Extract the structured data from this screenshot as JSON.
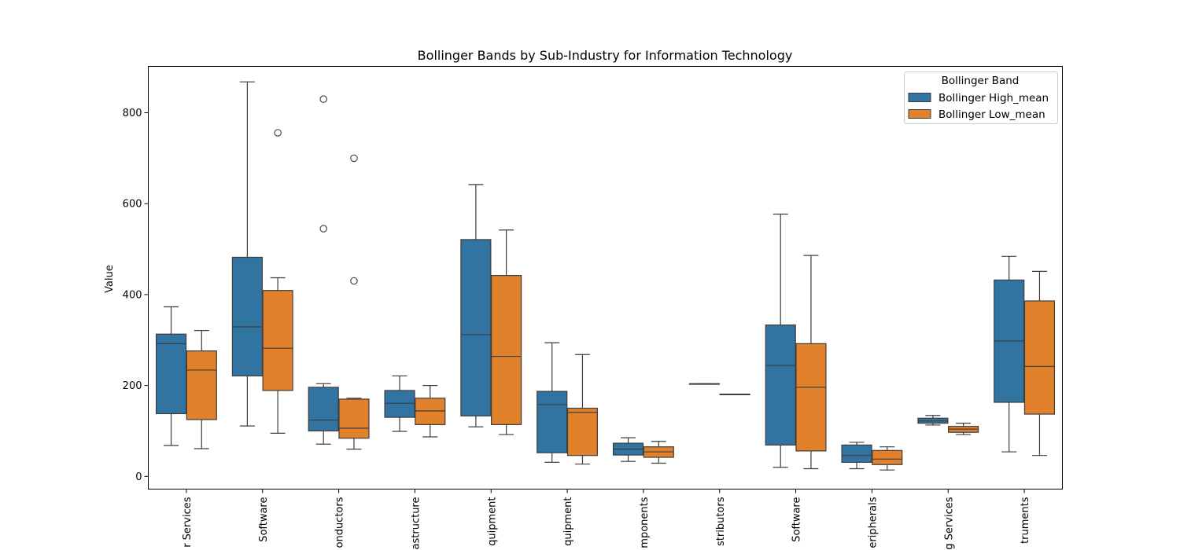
{
  "chart_data": {
    "type": "box",
    "title": "Bollinger Bands by Sub-Industry for Information Technology",
    "xlabel": "",
    "ylabel": "Value",
    "ylim": [
      -28,
      902
    ],
    "yticks": [
      0,
      200,
      400,
      600,
      800
    ],
    "grid": false,
    "legend": {
      "title": "Bollinger Band",
      "placement": "top-right"
    },
    "categories": [
      "r Services",
      "Software",
      "onductors",
      "astructure",
      "quipment",
      "quipment",
      "mponents",
      "stributors",
      "Software",
      "eripherals",
      "g Services",
      "truments"
    ],
    "series": [
      {
        "name": "Bollinger High_mean",
        "color": "#3274a1",
        "boxes": [
          {
            "whisker_low": 68,
            "q1": 138,
            "median": 292,
            "q3": 313,
            "whisker_high": 373,
            "outliers": []
          },
          {
            "whisker_low": 111,
            "q1": 221,
            "median": 329,
            "q3": 482,
            "whisker_high": 868,
            "outliers": []
          },
          {
            "whisker_low": 71,
            "q1": 100,
            "median": 124,
            "q3": 196,
            "whisker_high": 204,
            "outliers": [
              545,
              830
            ]
          },
          {
            "whisker_low": 99,
            "q1": 130,
            "median": 161,
            "q3": 189,
            "whisker_high": 221,
            "outliers": []
          },
          {
            "whisker_low": 109,
            "q1": 133,
            "median": 312,
            "q3": 521,
            "whisker_high": 642,
            "outliers": []
          },
          {
            "whisker_low": 31,
            "q1": 52,
            "median": 158,
            "q3": 187,
            "whisker_high": 294,
            "outliers": []
          },
          {
            "whisker_low": 33,
            "q1": 47,
            "median": 60,
            "q3": 73,
            "whisker_high": 85,
            "outliers": []
          },
          {
            "whisker_low": 203,
            "q1": 203,
            "median": 203,
            "q3": 204,
            "whisker_high": 204,
            "outliers": []
          },
          {
            "whisker_low": 20,
            "q1": 69,
            "median": 244,
            "q3": 333,
            "whisker_high": 577,
            "outliers": []
          },
          {
            "whisker_low": 17,
            "q1": 31,
            "median": 46,
            "q3": 69,
            "whisker_high": 75,
            "outliers": []
          },
          {
            "whisker_low": 113,
            "q1": 117,
            "median": 122,
            "q3": 128,
            "whisker_high": 134,
            "outliers": []
          },
          {
            "whisker_low": 54,
            "q1": 163,
            "median": 298,
            "q3": 432,
            "whisker_high": 484,
            "outliers": []
          }
        ]
      },
      {
        "name": "Bollinger Low_mean",
        "color": "#e1812c",
        "boxes": [
          {
            "whisker_low": 61,
            "q1": 125,
            "median": 234,
            "q3": 276,
            "whisker_high": 321,
            "outliers": []
          },
          {
            "whisker_low": 95,
            "q1": 189,
            "median": 282,
            "q3": 409,
            "whisker_high": 437,
            "outliers": [
              756
            ]
          },
          {
            "whisker_low": 60,
            "q1": 84,
            "median": 106,
            "q3": 170,
            "whisker_high": 172,
            "outliers": [
              430,
              700
            ]
          },
          {
            "whisker_low": 87,
            "q1": 114,
            "median": 144,
            "q3": 172,
            "whisker_high": 200,
            "outliers": []
          },
          {
            "whisker_low": 92,
            "q1": 114,
            "median": 264,
            "q3": 442,
            "whisker_high": 542,
            "outliers": []
          },
          {
            "whisker_low": 27,
            "q1": 46,
            "median": 141,
            "q3": 150,
            "whisker_high": 268,
            "outliers": []
          },
          {
            "whisker_low": 29,
            "q1": 42,
            "median": 54,
            "q3": 65,
            "whisker_high": 77,
            "outliers": []
          },
          {
            "whisker_low": 180,
            "q1": 180,
            "median": 181,
            "q3": 181,
            "whisker_high": 181,
            "outliers": []
          },
          {
            "whisker_low": 17,
            "q1": 56,
            "median": 196,
            "q3": 292,
            "whisker_high": 486,
            "outliers": []
          },
          {
            "whisker_low": 14,
            "q1": 26,
            "median": 38,
            "q3": 57,
            "whisker_high": 65,
            "outliers": []
          },
          {
            "whisker_low": 92,
            "q1": 97,
            "median": 104,
            "q3": 110,
            "whisker_high": 117,
            "outliers": []
          },
          {
            "whisker_low": 46,
            "q1": 137,
            "median": 242,
            "q3": 386,
            "whisker_high": 451,
            "outliers": []
          }
        ]
      }
    ]
  }
}
